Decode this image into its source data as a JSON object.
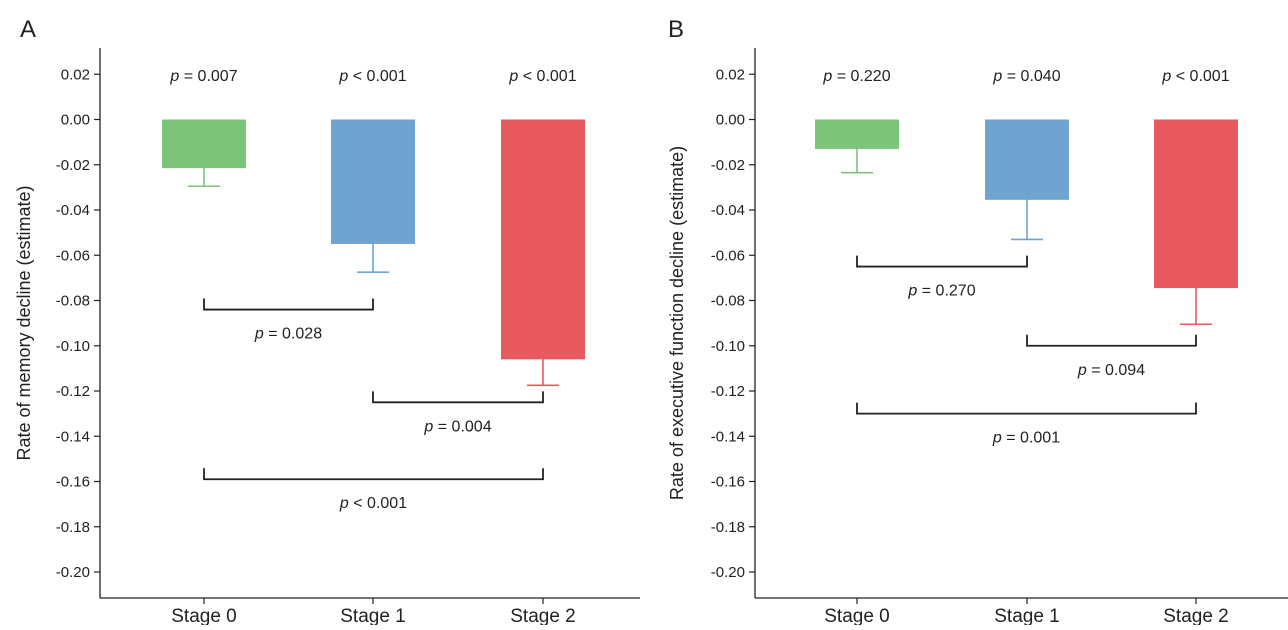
{
  "chart_data": [
    {
      "type": "bar",
      "panel_label": "A",
      "categories": [
        "Stage 0",
        "Stage 1",
        "Stage 2"
      ],
      "values": [
        -0.0215,
        -0.055,
        -0.106
      ],
      "error_bars": [
        {
          "low": -0.0295,
          "high": -0.0135
        },
        {
          "low": -0.0675,
          "high": -0.042
        },
        {
          "low": -0.1175,
          "high": -0.094
        }
      ],
      "colors": [
        "#7bc47a",
        "#6fa3d0",
        "#e8595f"
      ],
      "ylabel": "Rate of memory decline (estimate)",
      "ylim": [
        -0.21,
        0.03
      ],
      "yticks": [
        0.02,
        0.0,
        -0.02,
        -0.04,
        -0.06,
        -0.08,
        -0.1,
        -0.12,
        -0.14,
        -0.16,
        -0.18,
        -0.2
      ],
      "ytick_labels": [
        "0.02",
        "0.00",
        "-0.02",
        "-0.04",
        "-0.06",
        "-0.08",
        "-0.10",
        "-0.12",
        "-0.14",
        "-0.16",
        "-0.18",
        "-0.20"
      ],
      "grid": false,
      "bar_pvalues": [
        {
          "italic": "p",
          "rest": " = 0.007"
        },
        {
          "italic": "p",
          "rest": " < 0.001"
        },
        {
          "italic": "p",
          "rest": " < 0.001"
        }
      ],
      "brackets": [
        {
          "from": 0,
          "to": 1,
          "y": -0.084,
          "label": {
            "italic": "p",
            "rest": " = 0.028"
          }
        },
        {
          "from": 1,
          "to": 2,
          "y": -0.125,
          "label": {
            "italic": "p",
            "rest": " = 0.004"
          }
        },
        {
          "from": 0,
          "to": 2,
          "y": -0.159,
          "label": {
            "italic": "p",
            "rest": " < 0.001"
          }
        }
      ]
    },
    {
      "type": "bar",
      "panel_label": "B",
      "categories": [
        "Stage 0",
        "Stage 1",
        "Stage 2"
      ],
      "values": [
        -0.013,
        -0.0355,
        -0.0745
      ],
      "error_bars": [
        {
          "low": -0.0235,
          "high": -0.0025
        },
        {
          "low": -0.053,
          "high": -0.0185
        },
        {
          "low": -0.0905,
          "high": -0.0595
        }
      ],
      "colors": [
        "#7bc47a",
        "#6fa3d0",
        "#e8595f"
      ],
      "ylabel": "Rate of executive function decline (estimate)",
      "ylim": [
        -0.21,
        0.03
      ],
      "yticks": [
        0.02,
        0.0,
        -0.02,
        -0.04,
        -0.06,
        -0.08,
        -0.1,
        -0.12,
        -0.14,
        -0.16,
        -0.18,
        -0.2
      ],
      "ytick_labels": [
        "0.02",
        "0.00",
        "-0.02",
        "-0.04",
        "-0.06",
        "-0.08",
        "-0.10",
        "-0.12",
        "-0.14",
        "-0.16",
        "-0.18",
        "-0.20"
      ],
      "grid": false,
      "bar_pvalues": [
        {
          "italic": "p",
          "rest": " = 0.220"
        },
        {
          "italic": "p",
          "rest": " = 0.040"
        },
        {
          "italic": "p",
          "rest": " < 0.001"
        }
      ],
      "brackets": [
        {
          "from": 0,
          "to": 1,
          "y": -0.065,
          "label": {
            "italic": "p",
            "rest": " = 0.270"
          }
        },
        {
          "from": 1,
          "to": 2,
          "y": -0.1,
          "label": {
            "italic": "p",
            "rest": " = 0.094"
          }
        },
        {
          "from": 0,
          "to": 2,
          "y": -0.13,
          "label": {
            "italic": "p",
            "rest": " = 0.001"
          }
        }
      ]
    }
  ]
}
